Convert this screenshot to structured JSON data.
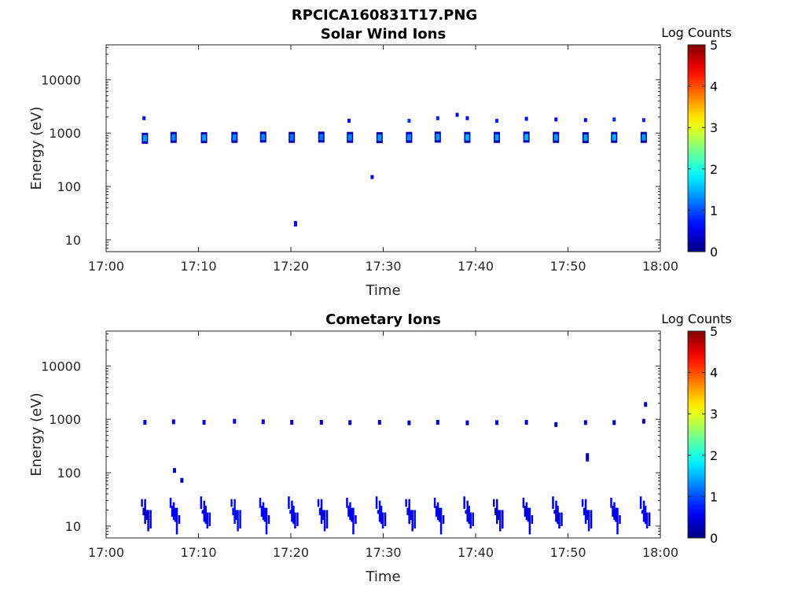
{
  "figure_title": "RPCICA160831T17.PNG",
  "chart_data": [
    {
      "type": "heatmap",
      "title": "Solar Wind Ions",
      "xlabel": "Time",
      "ylabel": "Energy (eV)",
      "x_tick_labels": [
        "17:00",
        "17:10",
        "17:20",
        "17:30",
        "17:40",
        "17:50",
        "18:00"
      ],
      "xlim": [
        "17:00",
        "18:00"
      ],
      "y_scale": "log",
      "y_tick_labels": [
        "10",
        "100",
        "1000",
        "10000"
      ],
      "ylim": [
        6,
        45000
      ],
      "colorbar": {
        "label": "Log Counts",
        "range": [
          0,
          5
        ],
        "ticks": [
          "0",
          "1",
          "2",
          "3",
          "4",
          "5"
        ],
        "colormap": "jet"
      },
      "spots": [
        {
          "t": 4.2,
          "e": 800,
          "level": 1.4
        },
        {
          "t": 7.3,
          "e": 830,
          "level": 1.3
        },
        {
          "t": 10.6,
          "e": 820,
          "level": 1.4
        },
        {
          "t": 13.9,
          "e": 830,
          "level": 1.3
        },
        {
          "t": 17.0,
          "e": 840,
          "level": 1.3
        },
        {
          "t": 20.1,
          "e": 830,
          "level": 1.2
        },
        {
          "t": 23.3,
          "e": 840,
          "level": 1.2
        },
        {
          "t": 26.4,
          "e": 830,
          "level": 1.3
        },
        {
          "t": 29.6,
          "e": 820,
          "level": 1.4
        },
        {
          "t": 32.8,
          "e": 830,
          "level": 1.3
        },
        {
          "t": 35.9,
          "e": 840,
          "level": 1.4
        },
        {
          "t": 39.1,
          "e": 830,
          "level": 1.5
        },
        {
          "t": 42.3,
          "e": 830,
          "level": 1.4
        },
        {
          "t": 45.5,
          "e": 840,
          "level": 1.5
        },
        {
          "t": 48.7,
          "e": 830,
          "level": 1.4
        },
        {
          "t": 51.9,
          "e": 820,
          "level": 1.4
        },
        {
          "t": 55.0,
          "e": 830,
          "level": 1.5
        },
        {
          "t": 58.2,
          "e": 830,
          "level": 1.4
        }
      ],
      "points": [
        {
          "t": 4.1,
          "e": 1900,
          "level": 0.7
        },
        {
          "t": 26.3,
          "e": 1700,
          "level": 0.6
        },
        {
          "t": 32.8,
          "e": 1700,
          "level": 0.9
        },
        {
          "t": 35.9,
          "e": 1900,
          "level": 0.8
        },
        {
          "t": 38.0,
          "e": 2200,
          "level": 0.5
        },
        {
          "t": 39.1,
          "e": 1900,
          "level": 0.7
        },
        {
          "t": 42.3,
          "e": 1700,
          "level": 0.8
        },
        {
          "t": 45.5,
          "e": 1850,
          "level": 0.7
        },
        {
          "t": 48.7,
          "e": 1800,
          "level": 0.7
        },
        {
          "t": 51.9,
          "e": 1750,
          "level": 0.7
        },
        {
          "t": 55.0,
          "e": 1800,
          "level": 0.8
        },
        {
          "t": 58.2,
          "e": 1750,
          "level": 0.8
        },
        {
          "t": 28.8,
          "e": 150,
          "level": 0.5
        },
        {
          "t": 20.5,
          "e": 20,
          "level": 0.6
        }
      ]
    },
    {
      "type": "heatmap",
      "title": "Cometary Ions",
      "xlabel": "Time",
      "ylabel": "Energy (eV)",
      "x_tick_labels": [
        "17:00",
        "17:10",
        "17:20",
        "17:30",
        "17:40",
        "17:50",
        "18:00"
      ],
      "xlim": [
        "17:00",
        "18:00"
      ],
      "y_scale": "log",
      "y_tick_labels": [
        "10",
        "100",
        "1000",
        "10000"
      ],
      "ylim": [
        6,
        45000
      ],
      "colorbar": {
        "label": "Log Counts",
        "range": [
          0,
          5
        ],
        "ticks": [
          "0",
          "1",
          "2",
          "3",
          "4",
          "5"
        ],
        "colormap": "jet"
      },
      "high_marks": [
        {
          "t": 4.2,
          "e": 880,
          "level": 0.5
        },
        {
          "t": 7.3,
          "e": 900,
          "level": 0.4
        },
        {
          "t": 10.6,
          "e": 880,
          "level": 0.4
        },
        {
          "t": 13.9,
          "e": 920,
          "level": 0.4
        },
        {
          "t": 17.0,
          "e": 900,
          "level": 0.4
        },
        {
          "t": 20.1,
          "e": 880,
          "level": 0.4
        },
        {
          "t": 23.3,
          "e": 880,
          "level": 0.4
        },
        {
          "t": 26.4,
          "e": 870,
          "level": 0.4
        },
        {
          "t": 29.6,
          "e": 880,
          "level": 0.4
        },
        {
          "t": 32.8,
          "e": 860,
          "level": 0.3
        },
        {
          "t": 35.9,
          "e": 880,
          "level": 0.4
        },
        {
          "t": 39.1,
          "e": 860,
          "level": 0.3
        },
        {
          "t": 42.3,
          "e": 870,
          "level": 0.4
        },
        {
          "t": 45.5,
          "e": 880,
          "level": 0.4
        },
        {
          "t": 48.7,
          "e": 800,
          "level": 0.3
        },
        {
          "t": 51.9,
          "e": 870,
          "level": 0.4
        },
        {
          "t": 55.0,
          "e": 870,
          "level": 0.3
        },
        {
          "t": 58.2,
          "e": 920,
          "level": 0.3
        },
        {
          "t": 58.4,
          "e": 1900,
          "level": 0.4
        },
        {
          "t": 7.4,
          "e": 110,
          "level": 0.3
        },
        {
          "t": 8.2,
          "e": 72,
          "level": 0.3
        },
        {
          "t": 52.1,
          "e": 210,
          "level": 0.3
        },
        {
          "t": 52.1,
          "e": 180,
          "level": 0.3
        }
      ],
      "low_bursts": [
        {
          "t": 4.2,
          "level": 0.4
        },
        {
          "t": 7.3,
          "level": 0.6
        },
        {
          "t": 10.6,
          "level": 0.6
        },
        {
          "t": 13.9,
          "level": 0.7
        },
        {
          "t": 17.0,
          "level": 0.6
        },
        {
          "t": 20.1,
          "level": 0.5
        },
        {
          "t": 23.3,
          "level": 0.5
        },
        {
          "t": 26.4,
          "level": 0.5
        },
        {
          "t": 29.6,
          "level": 0.5
        },
        {
          "t": 32.8,
          "level": 0.5
        },
        {
          "t": 35.9,
          "level": 0.5
        },
        {
          "t": 39.1,
          "level": 0.5
        },
        {
          "t": 42.3,
          "level": 0.4
        },
        {
          "t": 45.5,
          "level": 0.5
        },
        {
          "t": 48.7,
          "level": 0.4
        },
        {
          "t": 51.9,
          "level": 0.5
        },
        {
          "t": 55.0,
          "level": 0.5
        },
        {
          "t": 58.2,
          "level": 0.5
        }
      ]
    }
  ]
}
